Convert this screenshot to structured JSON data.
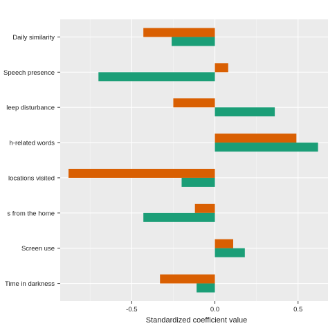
{
  "chart_data": {
    "type": "bar",
    "orientation": "horizontal",
    "title": "",
    "xlabel": "Standardized coefficient value",
    "ylabel": "",
    "xlim": [
      -0.93,
      0.68
    ],
    "grid": true,
    "legend": "none",
    "x_ticks": [
      {
        "value": -0.5,
        "label": "-0.5"
      },
      {
        "value": 0,
        "label": "0.0"
      },
      {
        "value": 0.5,
        "label": "0.5"
      }
    ],
    "categories": [
      "Daily similarity",
      "Speech presence",
      "leep disturbance",
      "h-related words",
      "locations visited",
      "s from the home",
      "Screen use",
      "Time in darkness"
    ],
    "series": [
      {
        "color": "#d95f02",
        "values": [
          -0.43,
          0.08,
          -0.25,
          0.49,
          -0.88,
          -0.12,
          0.11,
          -0.33
        ]
      },
      {
        "color": "#1b9e77",
        "values": [
          -0.26,
          -0.7,
          0.36,
          0.62,
          -0.2,
          -0.43,
          0.18,
          -0.11
        ]
      }
    ]
  },
  "colors": {
    "panel_background": "#ebebeb",
    "grid_major": "#ffffff",
    "grid_minor": "#f5f5f5"
  }
}
